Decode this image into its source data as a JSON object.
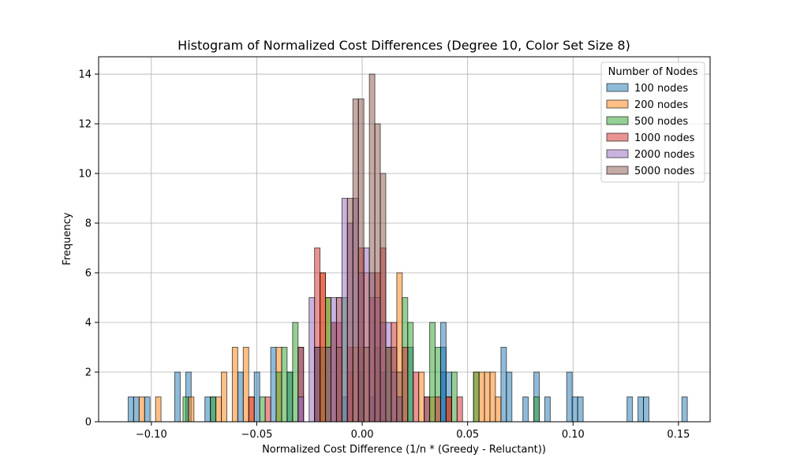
{
  "chart_data": {
    "type": "bar",
    "title": "Histogram of Normalized Cost Differences (Degree 10, Color Set Size 8)",
    "xlabel": "Normalized Cost Difference (1/n * (Greedy - Reluctant))",
    "ylabel": "Frequency",
    "xlim": [
      -0.125,
      0.165
    ],
    "ylim": [
      0,
      14.7
    ],
    "xticks": [
      -0.1,
      -0.05,
      0.0,
      0.05,
      0.1,
      0.15
    ],
    "xtick_labels": [
      "−0.10",
      "−0.05",
      "0.00",
      "0.05",
      "0.10",
      "0.15"
    ],
    "yticks": [
      0,
      2,
      4,
      6,
      8,
      10,
      12,
      14
    ],
    "ytick_labels": [
      "0",
      "2",
      "4",
      "6",
      "8",
      "10",
      "12",
      "14"
    ],
    "grid": true,
    "legend_title": "Number of Nodes",
    "legend_position": "top-right",
    "series": [
      {
        "name": "100 nodes",
        "color": "#1f77b4",
        "bin_width": 0.0026,
        "bars": [
          [
            -0.111,
            1
          ],
          [
            -0.1084,
            1
          ],
          [
            -0.1032,
            1
          ],
          [
            -0.0889,
            2
          ],
          [
            -0.0837,
            2
          ],
          [
            -0.0746,
            1
          ],
          [
            -0.072,
            1
          ],
          [
            -0.059,
            2
          ],
          [
            -0.0512,
            2
          ],
          [
            -0.0434,
            3
          ],
          [
            -0.0356,
            2
          ],
          [
            -0.0304,
            3
          ],
          [
            -0.0226,
            3
          ],
          [
            -0.0096,
            1
          ],
          [
            -0.0018,
            2
          ],
          [
            0.0034,
            1
          ],
          [
            0.0086,
            2
          ],
          [
            0.0164,
            1
          ],
          [
            0.0216,
            3
          ],
          [
            0.0294,
            1
          ],
          [
            0.0372,
            3
          ],
          [
            0.0372,
            2
          ],
          [
            0.0372,
            4
          ],
          [
            0.0398,
            2
          ],
          [
            0.0398,
            1
          ],
          [
            0.0658,
            3
          ],
          [
            0.0684,
            2
          ],
          [
            0.0762,
            1
          ],
          [
            0.0814,
            2
          ],
          [
            0.0866,
            1
          ],
          [
            0.097,
            2
          ],
          [
            0.0996,
            1
          ],
          [
            0.1022,
            1
          ],
          [
            0.1256,
            1
          ],
          [
            0.1308,
            1
          ],
          [
            0.1334,
            1
          ],
          [
            0.1516,
            1
          ]
        ]
      },
      {
        "name": "200 nodes",
        "color": "#ff7f0e",
        "bin_width": 0.0026,
        "bars": [
          [
            -0.1058,
            1
          ],
          [
            -0.098,
            1
          ],
          [
            -0.0824,
            1
          ],
          [
            -0.0694,
            1
          ],
          [
            -0.0668,
            2
          ],
          [
            -0.0616,
            3
          ],
          [
            -0.0564,
            3
          ],
          [
            -0.0538,
            1
          ],
          [
            -0.0408,
            3
          ],
          [
            -0.02,
            6
          ],
          [
            -0.0174,
            5
          ],
          [
            -0.0122,
            5
          ],
          [
            -0.007,
            2
          ],
          [
            -0.0044,
            3
          ],
          [
            0.0008,
            6
          ],
          [
            0.0112,
            3
          ],
          [
            0.0164,
            6
          ],
          [
            0.0268,
            2
          ],
          [
            0.032,
            1
          ],
          [
            0.0398,
            1
          ],
          [
            0.0528,
            2
          ],
          [
            0.0554,
            2
          ],
          [
            0.058,
            2
          ],
          [
            0.0606,
            2
          ],
          [
            0.0632,
            1
          ]
        ]
      },
      {
        "name": "500 nodes",
        "color": "#2ca02c",
        "bin_width": 0.0026,
        "bars": [
          [
            -0.085,
            1
          ],
          [
            -0.072,
            1
          ],
          [
            -0.0486,
            1
          ],
          [
            -0.0408,
            2
          ],
          [
            -0.0382,
            3
          ],
          [
            -0.0356,
            2
          ],
          [
            -0.033,
            4
          ],
          [
            -0.02,
            3
          ],
          [
            -0.0174,
            5
          ],
          [
            -0.0148,
            4
          ],
          [
            -0.0096,
            5
          ],
          [
            -0.0018,
            3
          ],
          [
            0.006,
            3
          ],
          [
            0.0112,
            3
          ],
          [
            0.019,
            5
          ],
          [
            0.0216,
            4
          ],
          [
            0.032,
            4
          ],
          [
            0.0346,
            3
          ],
          [
            0.0424,
            2
          ],
          [
            0.0528,
            2
          ],
          [
            0.0814,
            1
          ]
        ]
      },
      {
        "name": "1000 nodes",
        "color": "#d62728",
        "bin_width": 0.0026,
        "bars": [
          [
            -0.0538,
            1
          ],
          [
            -0.046,
            1
          ],
          [
            -0.0304,
            3
          ],
          [
            -0.0226,
            7
          ],
          [
            -0.02,
            6
          ],
          [
            -0.0148,
            4
          ],
          [
            -0.0122,
            4
          ],
          [
            -0.007,
            3
          ],
          [
            -0.0018,
            7
          ],
          [
            0.0034,
            5
          ],
          [
            0.006,
            6
          ],
          [
            0.0086,
            7
          ],
          [
            0.0138,
            4
          ],
          [
            0.019,
            3
          ],
          [
            0.0242,
            2
          ],
          [
            0.0294,
            1
          ],
          [
            0.0346,
            1
          ],
          [
            0.0398,
            1
          ],
          [
            0.045,
            1
          ]
        ]
      },
      {
        "name": "2000 nodes",
        "color": "#9467bd",
        "bin_width": 0.0026,
        "bars": [
          [
            -0.0304,
            1
          ],
          [
            -0.0252,
            5
          ],
          [
            -0.0226,
            3
          ],
          [
            -0.0174,
            3
          ],
          [
            -0.0148,
            5
          ],
          [
            -0.0122,
            5
          ],
          [
            -0.0096,
            9
          ],
          [
            -0.007,
            8
          ],
          [
            -0.0044,
            9
          ],
          [
            -0.0018,
            6
          ],
          [
            0.0008,
            7
          ],
          [
            0.0034,
            6
          ],
          [
            0.006,
            5
          ],
          [
            0.0086,
            4
          ],
          [
            0.0112,
            4
          ],
          [
            0.0138,
            2
          ],
          [
            0.0164,
            1
          ]
        ]
      },
      {
        "name": "5000 nodes",
        "color": "#8c564b",
        "bin_width": 0.0026,
        "bars": [
          [
            -0.0226,
            3
          ],
          [
            -0.0174,
            3
          ],
          [
            -0.0122,
            3
          ],
          [
            -0.007,
            9
          ],
          [
            -0.0044,
            13
          ],
          [
            -0.0018,
            13
          ],
          [
            0.0008,
            3
          ],
          [
            0.0034,
            14
          ],
          [
            0.006,
            12
          ],
          [
            0.0086,
            10
          ],
          [
            0.0112,
            3
          ],
          [
            0.0138,
            3
          ],
          [
            0.0164,
            2
          ]
        ]
      }
    ]
  }
}
